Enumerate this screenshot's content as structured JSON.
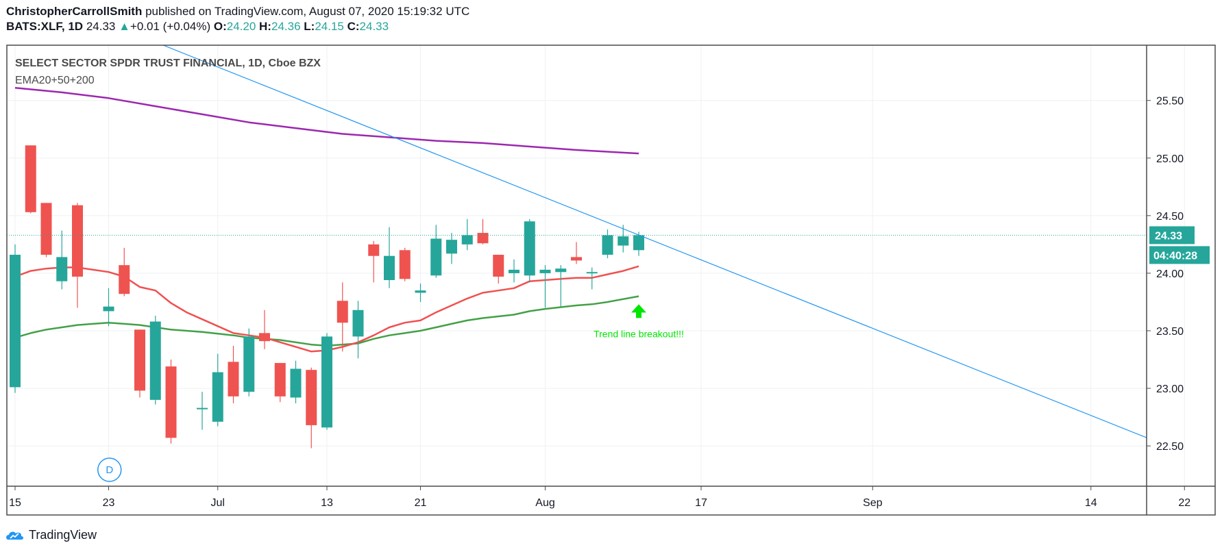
{
  "header": {
    "author": "ChristopherCarrollSmith",
    "published_text": " published on TradingView.com, August 07, 2020 15:19:32 UTC",
    "symbol": "BATS:XLF, 1D",
    "price": "24.33",
    "change_arrow": "▲",
    "change": "+0.01 (+0.04%)",
    "o_label": "O:",
    "o_value": "24.20",
    "h_label": "H:",
    "h_value": "24.36",
    "l_label": "L:",
    "l_value": "24.15",
    "c_label": "C:",
    "c_value": "24.33"
  },
  "footer": {
    "brand": "TradingView"
  },
  "colors": {
    "up": "#26a69a",
    "down": "#ef5350",
    "ema20": "#f0504f",
    "ema50": "#43a047",
    "ema200": "#9c27b0",
    "trendline": "#2196f3",
    "annotation": "#00e600",
    "marker": "#2196f3"
  },
  "chart_data": {
    "type": "candlestick",
    "title": "SELECT SECTOR SPDR TRUST FINANCIAL, 1D, Cboe BZX",
    "indicator_label": "EMA20+50+200",
    "ylim": [
      22.15,
      25.98
    ],
    "y_ticks": [
      "22.50",
      "23.00",
      "23.50",
      "24.00",
      "24.50",
      "25.00",
      "25.50"
    ],
    "y_tick_values": [
      22.5,
      23.0,
      23.5,
      24.0,
      24.5,
      25.0,
      25.5
    ],
    "x_ticks": [
      "15",
      "23",
      "Jul",
      "13",
      "21",
      "Aug",
      "17",
      "Sep",
      "14",
      "22"
    ],
    "x_tick_days": [
      0,
      6,
      13,
      20,
      26,
      34,
      44,
      55,
      69,
      75
    ],
    "last_price_label": "24.33",
    "countdown_label": "04:40:28",
    "last_price": 24.33,
    "candles": [
      {
        "day": 0,
        "o": 23.01,
        "h": 24.25,
        "l": 22.96,
        "c": 24.16
      },
      {
        "day": 1,
        "o": 25.11,
        "h": 25.11,
        "l": 24.52,
        "c": 24.53
      },
      {
        "day": 2,
        "o": 24.61,
        "h": 24.61,
        "l": 24.14,
        "c": 24.16
      },
      {
        "day": 3,
        "o": 23.93,
        "h": 24.37,
        "l": 23.86,
        "c": 24.14
      },
      {
        "day": 4,
        "o": 24.59,
        "h": 24.61,
        "l": 23.7,
        "c": 23.97
      },
      {
        "day": 6,
        "o": 23.67,
        "h": 23.87,
        "l": 23.54,
        "c": 23.71
      },
      {
        "day": 7,
        "o": 24.07,
        "h": 24.22,
        "l": 23.8,
        "c": 23.82
      },
      {
        "day": 8,
        "o": 23.51,
        "h": 23.51,
        "l": 22.92,
        "c": 22.98
      },
      {
        "day": 9,
        "o": 22.9,
        "h": 23.63,
        "l": 22.86,
        "c": 23.58
      },
      {
        "day": 10,
        "o": 23.19,
        "h": 23.25,
        "l": 22.52,
        "c": 22.57
      },
      {
        "day": 12,
        "o": 22.82,
        "h": 22.97,
        "l": 22.64,
        "c": 22.83
      },
      {
        "day": 13,
        "o": 22.71,
        "h": 23.3,
        "l": 22.67,
        "c": 23.14
      },
      {
        "day": 14,
        "o": 23.23,
        "h": 23.37,
        "l": 22.87,
        "c": 22.93
      },
      {
        "day": 15,
        "o": 22.97,
        "h": 23.52,
        "l": 22.93,
        "c": 23.45
      },
      {
        "day": 16,
        "o": 23.48,
        "h": 23.68,
        "l": 23.34,
        "c": 23.41
      },
      {
        "day": 17,
        "o": 23.22,
        "h": 23.22,
        "l": 22.88,
        "c": 22.93
      },
      {
        "day": 18,
        "o": 22.92,
        "h": 23.24,
        "l": 22.87,
        "c": 23.17
      },
      {
        "day": 19,
        "o": 23.16,
        "h": 23.18,
        "l": 22.48,
        "c": 22.68
      },
      {
        "day": 20,
        "o": 22.66,
        "h": 23.48,
        "l": 22.64,
        "c": 23.45
      },
      {
        "day": 21,
        "o": 23.76,
        "h": 23.92,
        "l": 23.32,
        "c": 23.57
      },
      {
        "day": 22,
        "o": 23.45,
        "h": 23.76,
        "l": 23.26,
        "c": 23.68
      },
      {
        "day": 23,
        "o": 24.25,
        "h": 24.28,
        "l": 23.92,
        "c": 24.15
      },
      {
        "day": 24,
        "o": 23.94,
        "h": 24.4,
        "l": 23.87,
        "c": 24.15
      },
      {
        "day": 25,
        "o": 24.2,
        "h": 24.22,
        "l": 23.93,
        "c": 23.95
      },
      {
        "day": 26,
        "o": 23.83,
        "h": 23.91,
        "l": 23.75,
        "c": 23.85
      },
      {
        "day": 27,
        "o": 23.98,
        "h": 24.42,
        "l": 23.96,
        "c": 24.3
      },
      {
        "day": 28,
        "o": 24.17,
        "h": 24.35,
        "l": 24.08,
        "c": 24.29
      },
      {
        "day": 29,
        "o": 24.25,
        "h": 24.47,
        "l": 24.2,
        "c": 24.33
      },
      {
        "day": 30,
        "o": 24.35,
        "h": 24.47,
        "l": 24.25,
        "c": 24.26
      },
      {
        "day": 31,
        "o": 24.16,
        "h": 24.16,
        "l": 23.91,
        "c": 23.97
      },
      {
        "day": 32,
        "o": 24.0,
        "h": 24.12,
        "l": 23.92,
        "c": 24.03
      },
      {
        "day": 33,
        "o": 23.98,
        "h": 24.47,
        "l": 23.92,
        "c": 24.45
      },
      {
        "day": 34,
        "o": 24.0,
        "h": 24.07,
        "l": 23.7,
        "c": 24.03
      },
      {
        "day": 35,
        "o": 24.01,
        "h": 24.07,
        "l": 23.71,
        "c": 24.04
      },
      {
        "day": 36,
        "o": 24.14,
        "h": 24.27,
        "l": 24.08,
        "c": 24.11
      },
      {
        "day": 37,
        "o": 24.0,
        "h": 24.05,
        "l": 23.86,
        "c": 24.01
      },
      {
        "day": 38,
        "o": 24.16,
        "h": 24.38,
        "l": 24.13,
        "c": 24.33
      },
      {
        "day": 39,
        "o": 24.24,
        "h": 24.42,
        "l": 24.18,
        "c": 24.32
      },
      {
        "day": 40,
        "o": 24.2,
        "h": 24.36,
        "l": 24.15,
        "c": 24.33
      }
    ],
    "series": [
      {
        "name": "EMA200",
        "color": "#9c27b0",
        "points": [
          [
            0,
            25.61
          ],
          [
            3,
            25.57
          ],
          [
            6,
            25.52
          ],
          [
            9,
            25.45
          ],
          [
            12,
            25.38
          ],
          [
            15,
            25.31
          ],
          [
            18,
            25.26
          ],
          [
            21,
            25.21
          ],
          [
            24,
            25.18
          ],
          [
            27,
            25.15
          ],
          [
            30,
            25.13
          ],
          [
            33,
            25.1
          ],
          [
            36,
            25.07
          ],
          [
            40,
            25.04
          ]
        ]
      },
      {
        "name": "EMA50",
        "color": "#43a047",
        "points": [
          [
            0,
            23.44
          ],
          [
            1,
            23.48
          ],
          [
            2,
            23.51
          ],
          [
            3,
            23.53
          ],
          [
            4,
            23.55
          ],
          [
            6,
            23.57
          ],
          [
            7,
            23.56
          ],
          [
            8,
            23.55
          ],
          [
            10,
            23.51
          ],
          [
            12,
            23.49
          ],
          [
            14,
            23.46
          ],
          [
            15,
            23.44
          ],
          [
            17,
            23.42
          ],
          [
            19,
            23.38
          ],
          [
            20,
            23.37
          ],
          [
            22,
            23.39
          ],
          [
            23,
            23.43
          ],
          [
            24,
            23.46
          ],
          [
            25,
            23.48
          ],
          [
            26,
            23.5
          ],
          [
            27,
            23.53
          ],
          [
            28,
            23.56
          ],
          [
            29,
            23.59
          ],
          [
            30,
            23.61
          ],
          [
            32,
            23.64
          ],
          [
            33,
            23.67
          ],
          [
            34,
            23.69
          ],
          [
            36,
            23.72
          ],
          [
            37,
            23.73
          ],
          [
            38,
            23.75
          ],
          [
            40,
            23.8
          ]
        ]
      },
      {
        "name": "EMA20",
        "color": "#f0504f",
        "points": [
          [
            0,
            23.97
          ],
          [
            1,
            24.02
          ],
          [
            2,
            24.04
          ],
          [
            3,
            24.05
          ],
          [
            4,
            24.05
          ],
          [
            5,
            24.03
          ],
          [
            6,
            24.01
          ],
          [
            7,
            23.97
          ],
          [
            8,
            23.88
          ],
          [
            9,
            23.85
          ],
          [
            10,
            23.74
          ],
          [
            11,
            23.66
          ],
          [
            12,
            23.6
          ],
          [
            13,
            23.54
          ],
          [
            14,
            23.48
          ],
          [
            15,
            23.46
          ],
          [
            16,
            23.44
          ],
          [
            17,
            23.4
          ],
          [
            18,
            23.36
          ],
          [
            19,
            23.32
          ],
          [
            20,
            23.33
          ],
          [
            21,
            23.36
          ],
          [
            22,
            23.4
          ],
          [
            23,
            23.46
          ],
          [
            24,
            23.53
          ],
          [
            25,
            23.57
          ],
          [
            26,
            23.59
          ],
          [
            27,
            23.66
          ],
          [
            28,
            23.72
          ],
          [
            29,
            23.78
          ],
          [
            30,
            23.83
          ],
          [
            31,
            23.85
          ],
          [
            32,
            23.87
          ],
          [
            33,
            23.93
          ],
          [
            34,
            23.94
          ],
          [
            35,
            23.95
          ],
          [
            36,
            23.96
          ],
          [
            37,
            23.96
          ],
          [
            38,
            23.99
          ],
          [
            39,
            24.02
          ],
          [
            40,
            24.06
          ]
        ]
      }
    ],
    "trendline": {
      "from": [
        9.5,
        25.98
      ],
      "to": [
        80,
        22.17
      ],
      "color": "#2196f3"
    },
    "annotation": {
      "text": "Trend line breakout!!!",
      "day": 40,
      "price": 23.58,
      "arrow_price": 23.67
    },
    "dividend_marker": {
      "label": "D",
      "day": 5
    }
  }
}
